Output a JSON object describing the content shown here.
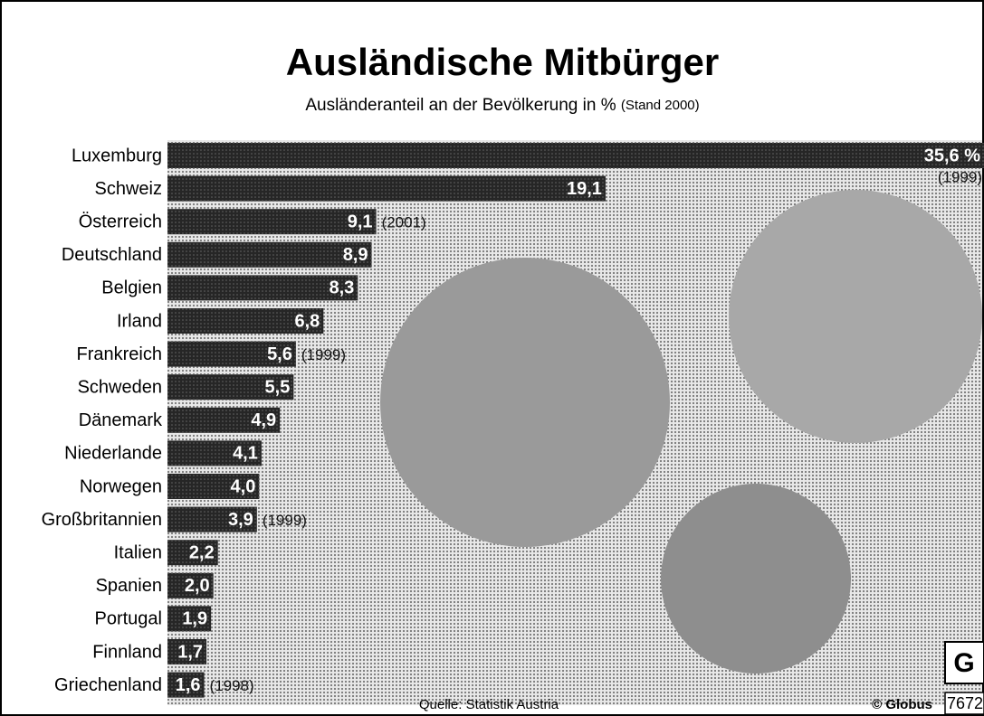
{
  "chart_data": {
    "type": "bar",
    "orientation": "horizontal",
    "title": "Ausländische Mitbürger",
    "subtitle": "Ausländeranteil an der Bevölkerung in %",
    "subtitle_note": "(Stand 2000)",
    "categories": [
      "Luxemburg",
      "Schweiz",
      "Österreich",
      "Deutschland",
      "Belgien",
      "Irland",
      "Frankreich",
      "Schweden",
      "Dänemark",
      "Niederlande",
      "Norwegen",
      "Großbritannien",
      "Italien",
      "Spanien",
      "Portugal",
      "Finnland",
      "Griechenland"
    ],
    "values": [
      35.6,
      19.1,
      9.1,
      8.9,
      8.3,
      6.8,
      5.6,
      5.5,
      4.9,
      4.1,
      4.0,
      3.9,
      2.2,
      2.0,
      1.9,
      1.7,
      1.6
    ],
    "value_labels": [
      "35,6 %",
      "19,1",
      "9,1",
      "8,9",
      "8,3",
      "6,8",
      "5,6",
      "5,5",
      "4,9",
      "4,1",
      "4,0",
      "3,9",
      "2,2",
      "2,0",
      "1,9",
      "1,7",
      "1,6"
    ],
    "notes": [
      "(1999)",
      null,
      "(2001)",
      null,
      null,
      null,
      "(1999)",
      null,
      null,
      null,
      null,
      "(1999)",
      null,
      null,
      null,
      null,
      "(1998)"
    ],
    "color": "#262626",
    "source": "Quelle: Statistik Austria",
    "credit": "© Globus",
    "graphic_number": "7672"
  }
}
